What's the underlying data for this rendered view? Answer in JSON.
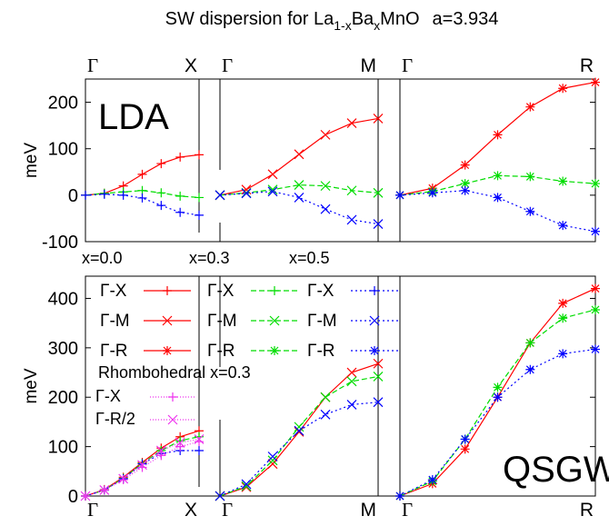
{
  "chart_data": {
    "type": "line",
    "title": {
      "prefix": "SW dispersion for La",
      "sub1": "1-x",
      "mid": "Ba",
      "sub2": "x",
      "suffix": "MnO",
      "lattice": "a=3.934"
    },
    "ylabel": "meV",
    "panels": [
      {
        "method": "LDA",
        "ylim": [
          -100,
          250
        ],
        "yticks": [
          "-100",
          "0",
          "100",
          "200"
        ],
        "sections": [
          {
            "start_label": "Γ",
            "end_label": "X",
            "direction": "Γ-X"
          },
          {
            "start_label": "Γ",
            "end_label": "M",
            "direction": "Γ-M"
          },
          {
            "start_label": "Γ",
            "end_label": "R",
            "direction": "Γ-R"
          }
        ],
        "series": [
          {
            "x": "0.0",
            "color": "#ff0000",
            "data": [
              [
                0,
                4,
                20,
                45,
                68,
                82,
                87
              ],
              [
                0,
                12,
                45,
                88,
                130,
                155,
                165
              ],
              [
                0,
                15,
                65,
                130,
                190,
                230,
                243
              ]
            ]
          },
          {
            "x": "0.3",
            "color": "#00dd00",
            "data": [
              [
                0,
                4,
                7,
                10,
                5,
                -2,
                -5
              ],
              [
                0,
                5,
                12,
                22,
                20,
                10,
                5
              ],
              [
                0,
                8,
                25,
                42,
                40,
                30,
                25
              ]
            ]
          },
          {
            "x": "0.5",
            "color": "#0000ff",
            "data": [
              [
                0,
                2,
                0,
                -6,
                -22,
                -37,
                -43
              ],
              [
                0,
                4,
                8,
                -5,
                -30,
                -53,
                -62
              ],
              [
                0,
                5,
                10,
                -5,
                -35,
                -65,
                -78
              ]
            ]
          }
        ]
      },
      {
        "method": "QSGW",
        "ylim": [
          0,
          445
        ],
        "yticks": [
          "0",
          "100",
          "200",
          "300",
          "400"
        ],
        "sections": [
          {
            "start_label": "Γ",
            "end_label": "X",
            "direction": "Γ-X"
          },
          {
            "start_label": "Γ",
            "end_label": "M",
            "direction": "Γ-M"
          },
          {
            "start_label": "Γ",
            "end_label": "R",
            "direction": "Γ-R"
          }
        ],
        "series": [
          {
            "x": "0.0",
            "color": "#ff0000",
            "data": [
              [
                0,
                13,
                38,
                68,
                97,
                120,
                132
              ],
              [
                0,
                18,
                65,
                130,
                200,
                250,
                268
              ],
              [
                0,
                25,
                95,
                200,
                310,
                390,
                420
              ]
            ]
          },
          {
            "x": "0.3",
            "color": "#00dd00",
            "data": [
              [
                0,
                12,
                36,
                66,
                92,
                112,
                120
              ],
              [
                0,
                20,
                72,
                140,
                200,
                232,
                242
              ],
              [
                0,
                30,
                115,
                220,
                310,
                360,
                377
              ]
            ]
          },
          {
            "x": "0.5",
            "color": "#0000ff",
            "data": [
              [
                0,
                12,
                35,
                65,
                86,
                92,
                92
              ],
              [
                0,
                24,
                80,
                132,
                165,
                185,
                190
              ],
              [
                0,
                33,
                115,
                200,
                256,
                288,
                297
              ]
            ]
          }
        ],
        "rhombohedral": {
          "label": "Rhombohedral x=0.3",
          "color": "#ee33ee",
          "items": [
            {
              "label": "Γ-X",
              "data": [
                0,
                12,
                33,
                58,
                82,
                100,
                110
              ]
            },
            {
              "label": "Γ-R/2",
              "data": [
                0,
                12,
                35,
                63,
                92,
                108,
                115
              ]
            }
          ]
        }
      }
    ],
    "legend": {
      "columns": [
        {
          "header": "x=0.0",
          "color": "#ff0000",
          "entries": [
            "Γ-X",
            "Γ-M",
            "Γ-R"
          ]
        },
        {
          "header": "x=0.3",
          "color": "#00dd00",
          "entries": [
            "Γ-X",
            "Γ-M",
            "Γ-R"
          ]
        },
        {
          "header": "x=0.5",
          "color": "#0000ff",
          "entries": [
            "Γ-X",
            "Γ-M",
            "Γ-R"
          ]
        }
      ]
    }
  }
}
